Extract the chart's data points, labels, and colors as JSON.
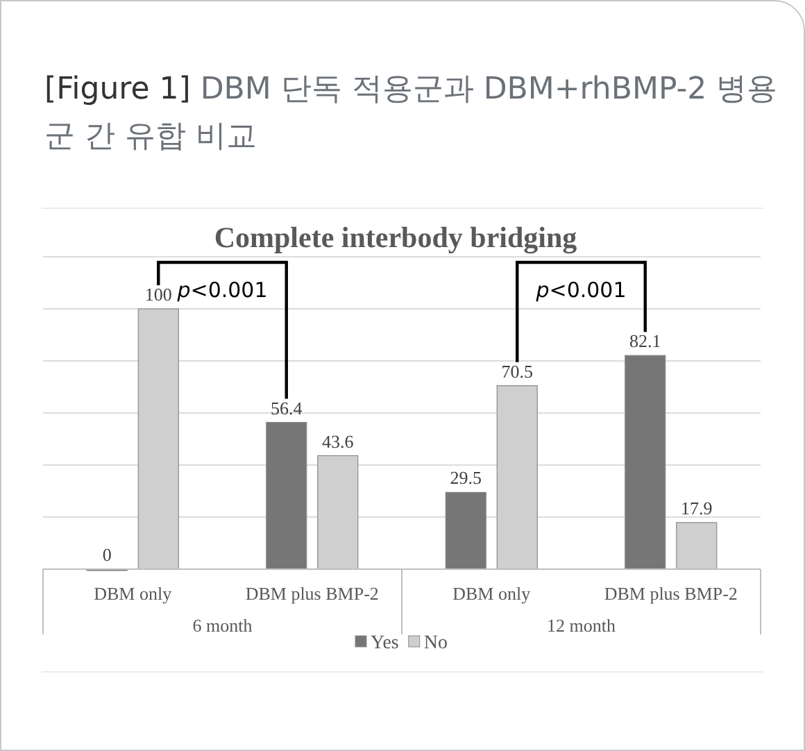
{
  "chart_data": {
    "type": "bar",
    "title": "**[Figure 1]** DBM 단독 적용군과 DBM+rhBMP-2 병용군 간 유합 비교",
    "subtitle": "Complete interbody bridging",
    "categories": [
      "DBM only",
      "DBM plus BMP-2",
      "DBM only",
      "DBM plus BMP-2"
    ],
    "series": [
      {
        "name": "Yes",
        "color": "#767676",
        "values": [
          0,
          56.4,
          29.5,
          82.1
        ]
      },
      {
        "name": "No",
        "color": "#cfcfcf",
        "values": [
          100,
          43.6,
          70.5,
          17.9
        ]
      }
    ],
    "ylim": [
      0,
      120
    ],
    "yticks": [
      {
        "value": 0,
        "label": null
      },
      {
        "value": 20,
        "label": null
      },
      {
        "value": 40,
        "label": null
      },
      {
        "value": 60,
        "label": null
      },
      {
        "value": 80,
        "label": null
      },
      {
        "value": 100,
        "label": null
      },
      {
        "value": 120,
        "label": null
      }
    ],
    "tick_labels": "x",
    "grid": "y",
    "data_labels": true,
    "legend": "bottom",
    "annotations": [
      "*p*<0.001",
      "*p*<0.001",
      "6 month",
      "12 month"
    ]
  }
}
